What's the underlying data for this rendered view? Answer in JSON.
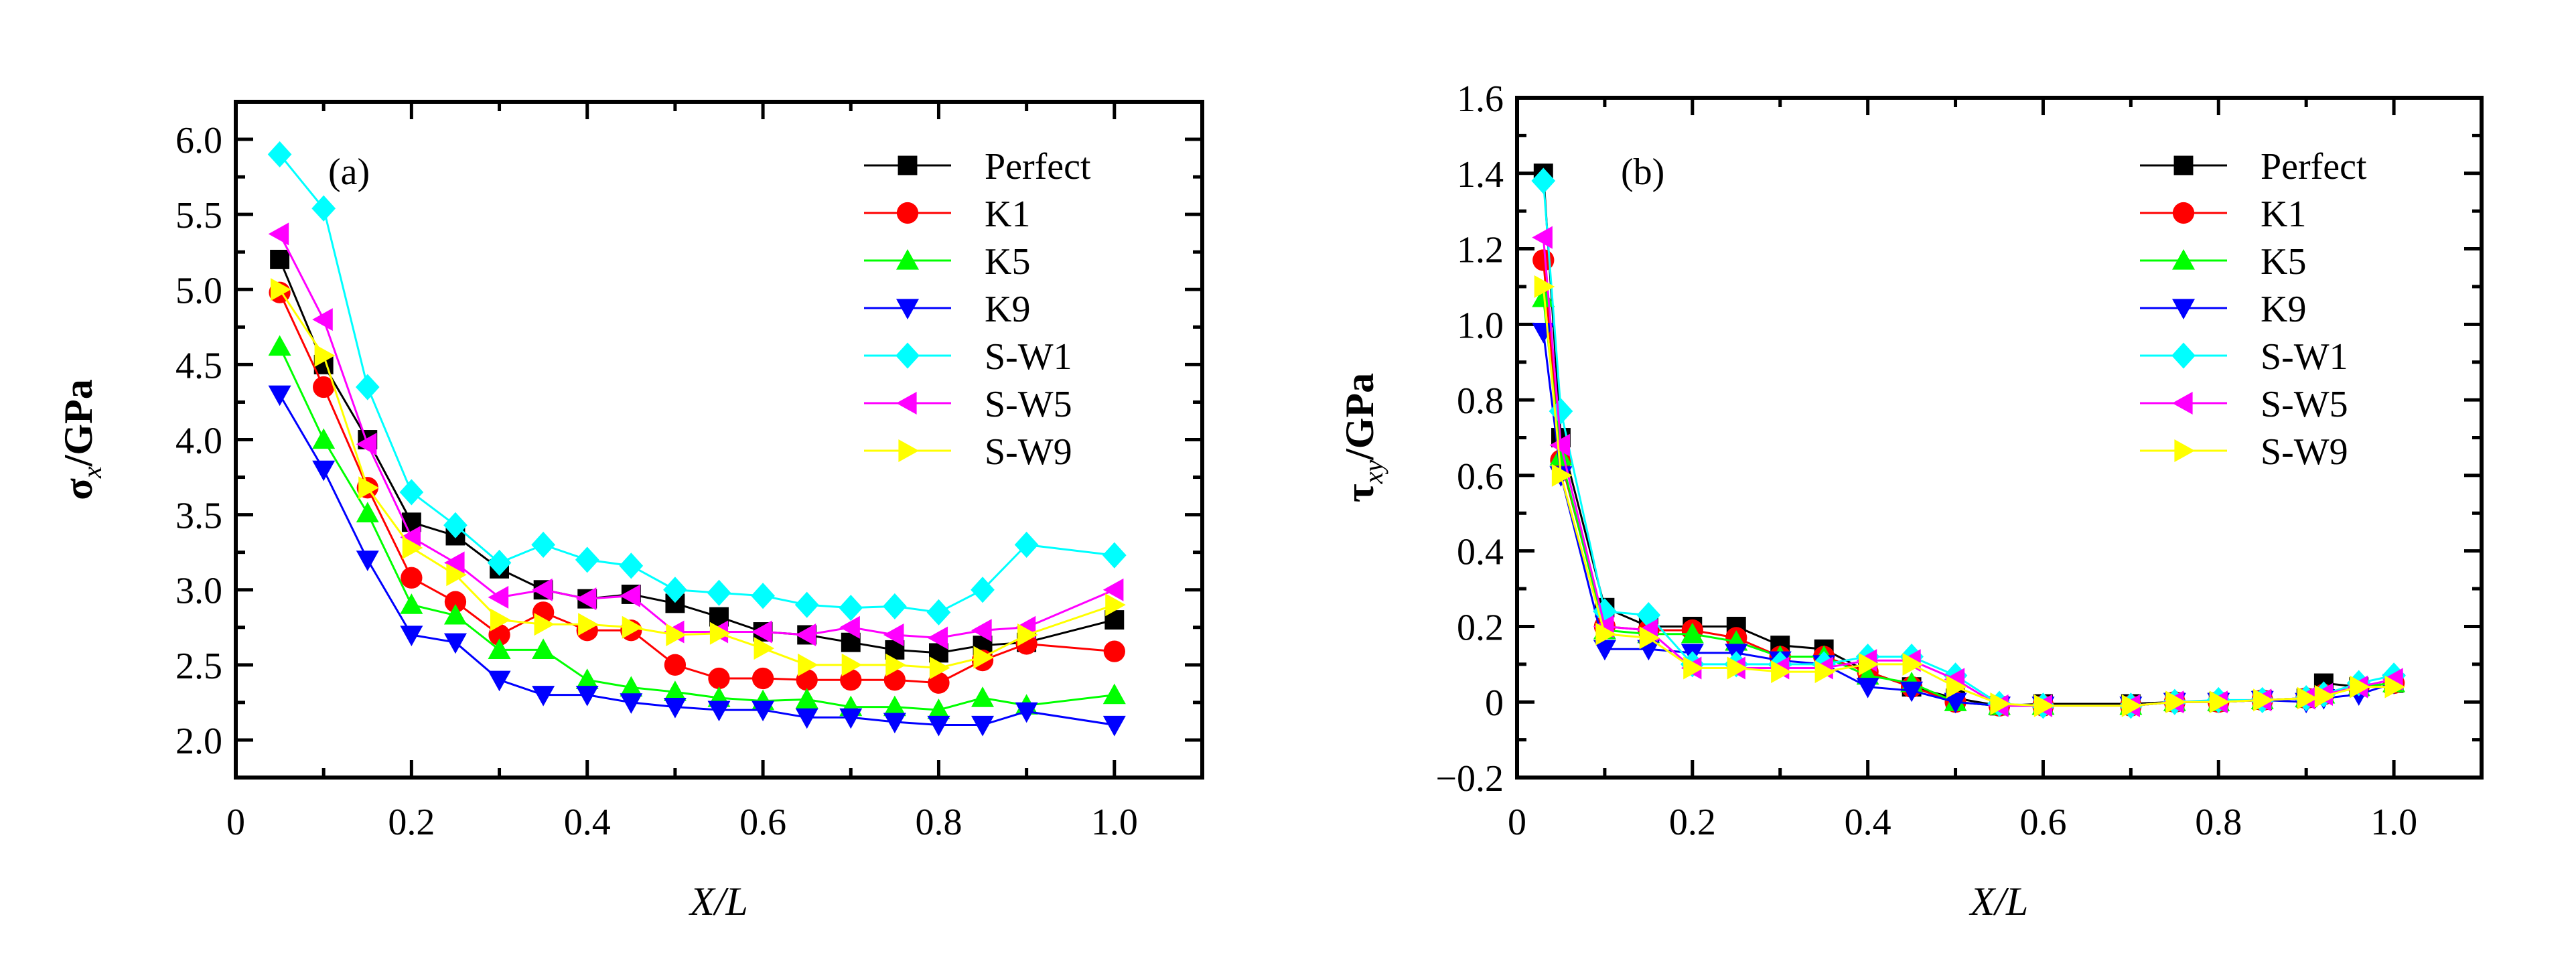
{
  "chart_data": [
    {
      "type": "line",
      "panel_label": "(a)",
      "title": "",
      "xlabel": "X/L",
      "ylabel_main": "σ",
      "ylabel_sub": "x",
      "ylabel_unit": "/GPa",
      "xlim": [
        0,
        1.1
      ],
      "ylim": [
        1.75,
        6.25
      ],
      "xticks": [
        0,
        0.2,
        0.4,
        0.6,
        0.8,
        1.0
      ],
      "xtick_labels": [
        "0",
        "0.2",
        "0.4",
        "0.6",
        "0.8",
        "1.0"
      ],
      "yticks": [
        2.0,
        2.5,
        3.0,
        3.5,
        4.0,
        4.5,
        5.0,
        5.5,
        6.0
      ],
      "ytick_labels": [
        "2.0",
        "2.5",
        "3.0",
        "3.5",
        "4.0",
        "4.5",
        "5.0",
        "5.5",
        "6.0"
      ],
      "grid": false,
      "legend_position": "top-right",
      "x": [
        0.05,
        0.1,
        0.15,
        0.2,
        0.25,
        0.3,
        0.35,
        0.4,
        0.45,
        0.5,
        0.55,
        0.6,
        0.65,
        0.7,
        0.75,
        0.8,
        0.85,
        0.9,
        1.0
      ],
      "series": [
        {
          "name": "Perfect",
          "color": "#000000",
          "marker": "square",
          "values": [
            5.2,
            4.5,
            4.0,
            3.45,
            3.36,
            3.14,
            3.0,
            2.94,
            2.97,
            2.91,
            2.82,
            2.72,
            2.7,
            2.65,
            2.6,
            2.58,
            2.63,
            2.65,
            2.8
          ]
        },
        {
          "name": "K1",
          "color": "#ff0000",
          "marker": "circle",
          "values": [
            4.98,
            4.35,
            3.68,
            3.08,
            2.92,
            2.7,
            2.85,
            2.73,
            2.73,
            2.5,
            2.41,
            2.41,
            2.4,
            2.4,
            2.4,
            2.38,
            2.53,
            2.64,
            2.59
          ]
        },
        {
          "name": "K5",
          "color": "#00ff00",
          "marker": "triangle-up",
          "values": [
            4.62,
            4.0,
            3.51,
            2.9,
            2.83,
            2.6,
            2.6,
            2.4,
            2.35,
            2.32,
            2.28,
            2.26,
            2.27,
            2.22,
            2.22,
            2.2,
            2.28,
            2.23,
            2.3
          ]
        },
        {
          "name": "K9",
          "color": "#0000ff",
          "marker": "triangle-down",
          "values": [
            4.3,
            3.8,
            3.2,
            2.7,
            2.65,
            2.4,
            2.3,
            2.3,
            2.25,
            2.22,
            2.2,
            2.2,
            2.15,
            2.15,
            2.12,
            2.1,
            2.1,
            2.19,
            2.1
          ]
        },
        {
          "name": "S-W1",
          "color": "#00ffff",
          "marker": "diamond",
          "values": [
            5.9,
            5.54,
            4.35,
            3.65,
            3.43,
            3.18,
            3.3,
            3.2,
            3.16,
            3.0,
            2.98,
            2.96,
            2.9,
            2.88,
            2.89,
            2.85,
            3.0,
            3.3,
            3.23
          ]
        },
        {
          "name": "S-W5",
          "color": "#ff00ff",
          "marker": "triangle-left",
          "values": [
            5.37,
            4.8,
            3.97,
            3.35,
            3.18,
            2.95,
            3.0,
            2.94,
            2.96,
            2.72,
            2.72,
            2.72,
            2.7,
            2.75,
            2.7,
            2.68,
            2.73,
            2.75,
            3.0
          ]
        },
        {
          "name": "S-W9",
          "color": "#ffff00",
          "marker": "triangle-right",
          "values": [
            5.0,
            4.56,
            3.68,
            3.28,
            3.1,
            2.8,
            2.77,
            2.77,
            2.75,
            2.7,
            2.71,
            2.61,
            2.5,
            2.5,
            2.5,
            2.48,
            2.55,
            2.7,
            2.9
          ]
        }
      ]
    },
    {
      "type": "line",
      "panel_label": "(b)",
      "title": "",
      "xlabel": "X/L",
      "ylabel_main": "τ",
      "ylabel_sub": "xy",
      "ylabel_unit": "/GPa",
      "xlim": [
        0,
        1.1
      ],
      "ylim": [
        -0.2,
        1.6
      ],
      "xticks": [
        0,
        0.2,
        0.4,
        0.6,
        0.8,
        1.0
      ],
      "xtick_labels": [
        "0",
        "0.2",
        "0.4",
        "0.6",
        "0.8",
        "1.0"
      ],
      "yticks": [
        -0.2,
        0,
        0.2,
        0.4,
        0.6,
        0.8,
        1.0,
        1.2,
        1.4,
        1.6
      ],
      "ytick_labels": [
        "−0.2",
        "0",
        "0.2",
        "0.4",
        "0.6",
        "0.8",
        "1.0",
        "1.2",
        "1.4",
        "1.6"
      ],
      "grid": false,
      "legend_position": "top-right",
      "x": [
        0.03,
        0.05,
        0.1,
        0.15,
        0.2,
        0.25,
        0.3,
        0.35,
        0.4,
        0.45,
        0.5,
        0.55,
        0.6,
        0.7,
        0.75,
        0.8,
        0.85,
        0.9,
        0.92,
        0.96,
        1.0
      ],
      "series": [
        {
          "name": "Perfect",
          "color": "#000000",
          "marker": "square",
          "values": [
            1.4,
            0.7,
            0.25,
            0.2,
            0.2,
            0.2,
            0.15,
            0.14,
            0.08,
            0.04,
            0.01,
            -0.01,
            -0.005,
            -0.005,
            0.0,
            0.0,
            0.005,
            0.01,
            0.05,
            0.04,
            0.05
          ]
        },
        {
          "name": "K1",
          "color": "#ff0000",
          "marker": "circle",
          "values": [
            1.17,
            0.64,
            0.2,
            0.19,
            0.19,
            0.17,
            0.12,
            0.12,
            0.08,
            0.04,
            0.0,
            -0.01,
            -0.01,
            -0.01,
            0.0,
            0.0,
            0.005,
            0.01,
            0.02,
            0.04,
            0.05
          ]
        },
        {
          "name": "K5",
          "color": "#00ff00",
          "marker": "triangle-up",
          "values": [
            1.07,
            0.65,
            0.19,
            0.18,
            0.18,
            0.16,
            0.12,
            0.12,
            0.07,
            0.05,
            0.0,
            -0.01,
            -0.01,
            -0.01,
            0.0,
            0.0,
            0.005,
            0.01,
            0.02,
            0.04,
            0.05
          ]
        },
        {
          "name": "K9",
          "color": "#0000ff",
          "marker": "triangle-down",
          "values": [
            0.98,
            0.6,
            0.14,
            0.14,
            0.13,
            0.13,
            0.11,
            0.1,
            0.04,
            0.03,
            0.0,
            -0.01,
            -0.01,
            -0.01,
            0.0,
            0.0,
            0.005,
            0.0,
            0.01,
            0.02,
            0.05
          ]
        },
        {
          "name": "S-W1",
          "color": "#00ffff",
          "marker": "diamond",
          "values": [
            1.38,
            0.77,
            0.24,
            0.23,
            0.1,
            0.1,
            0.1,
            0.1,
            0.12,
            0.12,
            0.07,
            -0.005,
            -0.01,
            -0.01,
            0.0,
            0.005,
            0.005,
            0.01,
            0.02,
            0.05,
            0.07
          ]
        },
        {
          "name": "S-W5",
          "color": "#ff00ff",
          "marker": "triangle-left",
          "values": [
            1.23,
            0.68,
            0.2,
            0.19,
            0.09,
            0.09,
            0.09,
            0.09,
            0.11,
            0.11,
            0.06,
            -0.01,
            -0.01,
            -0.01,
            0.0,
            0.0,
            0.005,
            0.01,
            0.02,
            0.04,
            0.06
          ]
        },
        {
          "name": "S-W9",
          "color": "#ffff00",
          "marker": "triangle-right",
          "values": [
            1.1,
            0.6,
            0.18,
            0.17,
            0.09,
            0.09,
            0.08,
            0.08,
            0.1,
            0.1,
            0.04,
            -0.005,
            -0.01,
            -0.01,
            0.0,
            0.0,
            0.005,
            0.01,
            0.015,
            0.04,
            0.04
          ]
        }
      ]
    }
  ]
}
